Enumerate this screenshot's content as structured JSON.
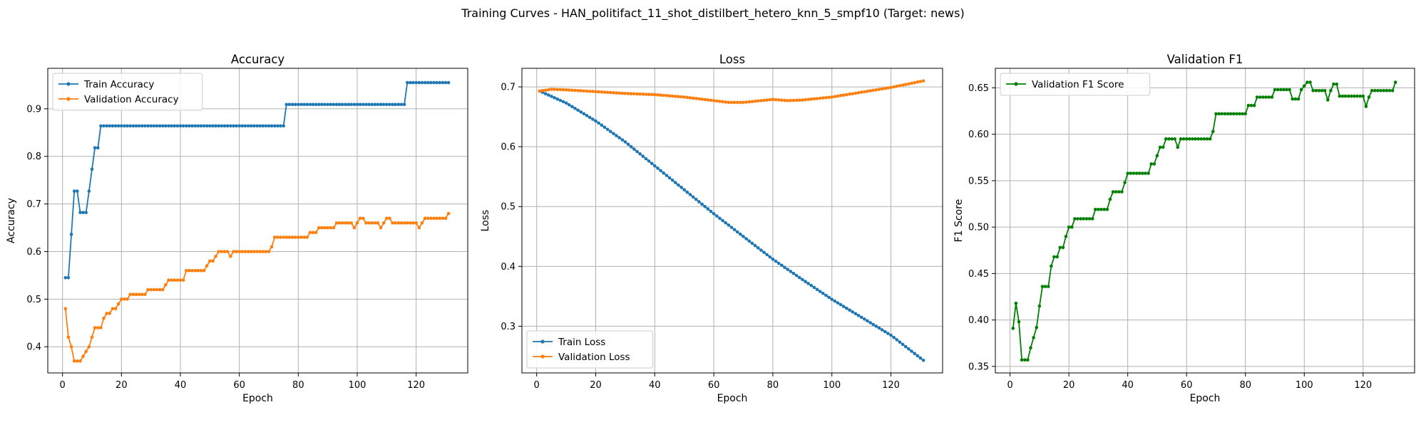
{
  "figure": {
    "suptitle": "Training Curves - HAN_politifact_11_shot_distilbert_hetero_knn_5_smpf10 (Target: news)"
  },
  "chart_data": [
    {
      "type": "line",
      "title": "Accuracy",
      "xlabel": "Epoch",
      "ylabel": "Accuracy",
      "xlim": [
        -5,
        137.5
      ],
      "ylim": [
        0.345,
        0.985
      ],
      "xticks": [
        0,
        20,
        40,
        60,
        80,
        100,
        120
      ],
      "yticks": [
        0.4,
        0.5,
        0.6,
        0.7,
        0.8,
        0.9
      ],
      "grid": true,
      "legend_loc": "upper-left",
      "series": [
        {
          "name": "Train Accuracy",
          "color": "#1f77b4",
          "points": [
            [
              1,
              0.545
            ],
            [
              2,
              0.545
            ],
            [
              3,
              0.636
            ],
            [
              4,
              0.727
            ],
            [
              5,
              0.727
            ],
            [
              6,
              0.682
            ],
            [
              7,
              0.682
            ],
            [
              8,
              0.682
            ],
            [
              9,
              0.727
            ],
            [
              10,
              0.773
            ],
            [
              11,
              0.818
            ],
            [
              12,
              0.818
            ],
            [
              13,
              0.864
            ],
            [
              75,
              0.864
            ],
            [
              76,
              0.909
            ],
            [
              116,
              0.909
            ],
            [
              117,
              0.955
            ],
            [
              131,
              0.955
            ]
          ]
        },
        {
          "name": "Validation Accuracy",
          "color": "#ff7f0e",
          "points": [
            [
              1,
              0.48
            ],
            [
              2,
              0.42
            ],
            [
              3,
              0.4
            ],
            [
              4,
              0.37
            ],
            [
              5,
              0.37
            ],
            [
              6,
              0.37
            ],
            [
              7,
              0.38
            ],
            [
              8,
              0.39
            ],
            [
              9,
              0.4
            ],
            [
              10,
              0.42
            ],
            [
              11,
              0.44
            ],
            [
              12,
              0.44
            ],
            [
              13,
              0.44
            ],
            [
              14,
              0.46
            ],
            [
              15,
              0.47
            ],
            [
              16,
              0.47
            ],
            [
              17,
              0.48
            ],
            [
              18,
              0.48
            ],
            [
              19,
              0.49
            ],
            [
              20,
              0.5
            ],
            [
              22,
              0.5
            ],
            [
              23,
              0.51
            ],
            [
              28,
              0.51
            ],
            [
              29,
              0.52
            ],
            [
              34,
              0.52
            ],
            [
              35,
              0.53
            ],
            [
              36,
              0.54
            ],
            [
              41,
              0.54
            ],
            [
              42,
              0.56
            ],
            [
              48,
              0.56
            ],
            [
              49,
              0.57
            ],
            [
              50,
              0.58
            ],
            [
              51,
              0.58
            ],
            [
              52,
              0.59
            ],
            [
              53,
              0.6
            ],
            [
              56,
              0.6
            ],
            [
              57,
              0.59
            ],
            [
              58,
              0.6
            ],
            [
              70,
              0.6
            ],
            [
              71,
              0.61
            ],
            [
              72,
              0.63
            ],
            [
              83,
              0.63
            ],
            [
              84,
              0.64
            ],
            [
              86,
              0.64
            ],
            [
              87,
              0.65
            ],
            [
              92,
              0.65
            ],
            [
              93,
              0.66
            ],
            [
              98,
              0.66
            ],
            [
              99,
              0.65
            ],
            [
              100,
              0.66
            ],
            [
              101,
              0.67
            ],
            [
              102,
              0.67
            ],
            [
              103,
              0.66
            ],
            [
              107,
              0.66
            ],
            [
              108,
              0.65
            ],
            [
              109,
              0.66
            ],
            [
              110,
              0.67
            ],
            [
              111,
              0.67
            ],
            [
              112,
              0.66
            ],
            [
              120,
              0.66
            ],
            [
              121,
              0.65
            ],
            [
              122,
              0.66
            ],
            [
              123,
              0.67
            ],
            [
              130,
              0.67
            ],
            [
              131,
              0.68
            ]
          ]
        }
      ]
    },
    {
      "type": "line",
      "title": "Loss",
      "xlabel": "Epoch",
      "ylabel": "Loss",
      "xlim": [
        -5,
        137.5
      ],
      "ylim": [
        0.222,
        0.731
      ],
      "xticks": [
        0,
        20,
        40,
        60,
        80,
        100,
        120
      ],
      "yticks": [
        0.3,
        0.4,
        0.5,
        0.6,
        0.7
      ],
      "grid": true,
      "legend_loc": "lower-left",
      "series": [
        {
          "name": "Train Loss",
          "color": "#1f77b4",
          "points": [
            [
              1,
              0.693
            ],
            [
              10,
              0.673
            ],
            [
              20,
              0.643
            ],
            [
              30,
              0.608
            ],
            [
              40,
              0.568
            ],
            [
              50,
              0.528
            ],
            [
              60,
              0.488
            ],
            [
              70,
              0.45
            ],
            [
              80,
              0.412
            ],
            [
              90,
              0.378
            ],
            [
              100,
              0.345
            ],
            [
              110,
              0.315
            ],
            [
              120,
              0.285
            ],
            [
              131,
              0.243
            ]
          ]
        },
        {
          "name": "Validation Loss",
          "color": "#ff7f0e",
          "points": [
            [
              1,
              0.693
            ],
            [
              5,
              0.696
            ],
            [
              10,
              0.695
            ],
            [
              20,
              0.692
            ],
            [
              30,
              0.689
            ],
            [
              40,
              0.687
            ],
            [
              50,
              0.683
            ],
            [
              60,
              0.677
            ],
            [
              65,
              0.674
            ],
            [
              70,
              0.674
            ],
            [
              80,
              0.679
            ],
            [
              85,
              0.677
            ],
            [
              90,
              0.678
            ],
            [
              100,
              0.683
            ],
            [
              110,
              0.691
            ],
            [
              120,
              0.699
            ],
            [
              131,
              0.71
            ]
          ]
        }
      ]
    },
    {
      "type": "line",
      "title": "Validation F1",
      "xlabel": "Epoch",
      "ylabel": "F1 Score",
      "xlim": [
        -5,
        137.5
      ],
      "ylim": [
        0.343,
        0.671
      ],
      "xticks": [
        0,
        20,
        40,
        60,
        80,
        100,
        120
      ],
      "yticks": [
        0.35,
        0.4,
        0.45,
        0.5,
        0.55,
        0.6,
        0.65
      ],
      "grid": true,
      "legend_loc": "upper-left",
      "series": [
        {
          "name": "Validation F1 Score",
          "color": "#008000",
          "points": [
            [
              1,
              0.391
            ],
            [
              2,
              0.418
            ],
            [
              3,
              0.398
            ],
            [
              4,
              0.357
            ],
            [
              6,
              0.357
            ],
            [
              7,
              0.37
            ],
            [
              8,
              0.381
            ],
            [
              9,
              0.392
            ],
            [
              10,
              0.415
            ],
            [
              11,
              0.436
            ],
            [
              13,
              0.436
            ],
            [
              14,
              0.458
            ],
            [
              15,
              0.468
            ],
            [
              16,
              0.468
            ],
            [
              17,
              0.478
            ],
            [
              18,
              0.478
            ],
            [
              19,
              0.49
            ],
            [
              20,
              0.5
            ],
            [
              21,
              0.5
            ],
            [
              22,
              0.509
            ],
            [
              28,
              0.509
            ],
            [
              29,
              0.519
            ],
            [
              33,
              0.519
            ],
            [
              34,
              0.53
            ],
            [
              35,
              0.538
            ],
            [
              38,
              0.538
            ],
            [
              39,
              0.548
            ],
            [
              40,
              0.558
            ],
            [
              47,
              0.558
            ],
            [
              48,
              0.568
            ],
            [
              49,
              0.568
            ],
            [
              50,
              0.577
            ],
            [
              51,
              0.586
            ],
            [
              52,
              0.586
            ],
            [
              53,
              0.595
            ],
            [
              56,
              0.595
            ],
            [
              57,
              0.586
            ],
            [
              58,
              0.595
            ],
            [
              68,
              0.595
            ],
            [
              69,
              0.603
            ],
            [
              70,
              0.622
            ],
            [
              80,
              0.622
            ],
            [
              81,
              0.631
            ],
            [
              83,
              0.631
            ],
            [
              84,
              0.64
            ],
            [
              89,
              0.64
            ],
            [
              90,
              0.648
            ],
            [
              95,
              0.648
            ],
            [
              96,
              0.638
            ],
            [
              98,
              0.638
            ],
            [
              99,
              0.648
            ],
            [
              101,
              0.656
            ],
            [
              102,
              0.656
            ],
            [
              103,
              0.647
            ],
            [
              107,
              0.647
            ],
            [
              108,
              0.637
            ],
            [
              109,
              0.647
            ],
            [
              110,
              0.654
            ],
            [
              111,
              0.654
            ],
            [
              112,
              0.641
            ],
            [
              120,
              0.641
            ],
            [
              121,
              0.63
            ],
            [
              122,
              0.64
            ],
            [
              123,
              0.647
            ],
            [
              130,
              0.647
            ],
            [
              131,
              0.656
            ]
          ]
        }
      ]
    }
  ]
}
